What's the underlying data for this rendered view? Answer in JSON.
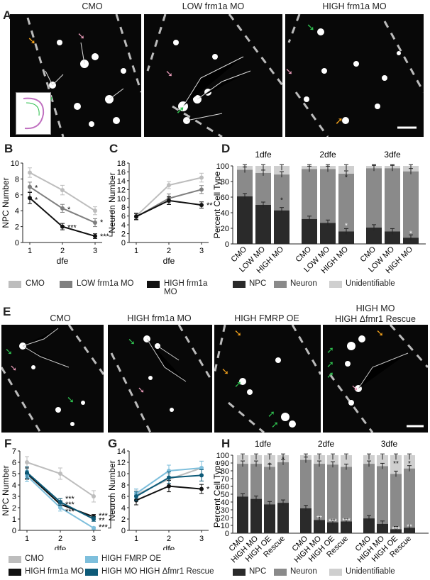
{
  "panels": {
    "A": {
      "label": "A",
      "titles": [
        "CMO",
        "LOW frm1a MO",
        "HIGH frm1a MO"
      ]
    },
    "B": {
      "label": "B"
    },
    "C": {
      "label": "C"
    },
    "D": {
      "label": "D"
    },
    "E": {
      "label": "E",
      "titles": [
        "CMO",
        "HIGH frm1a MO",
        "HIGH FMRP OE",
        "HIGH MO",
        "HIGH Δfmr1 Rescue"
      ]
    },
    "F": {
      "label": "F"
    },
    "G": {
      "label": "G"
    },
    "H": {
      "label": "H"
    }
  },
  "colors": {
    "cmo": "#bdbdbd",
    "low": "#7f7f7f",
    "high": "#111111",
    "fmrp": "#7ebfdc",
    "rescue": "#0d5a78",
    "npc": "#2a2a2a",
    "neuron": "#8a8a8a",
    "unid": "#cfcfcf",
    "arrow_green": "#2fbf4f",
    "arrow_pink": "#e89ab8",
    "arrow_orange": "#f3a21c"
  },
  "legends": {
    "top": [
      "CMO",
      "LOW frm1a MO",
      "HIGH frm1a MO"
    ],
    "bottom": [
      "CMO",
      "HIGH FMRP OE",
      "HIGH frm1a MO",
      "HIGH MO HIGH Δfmr1 Rescue"
    ],
    "celltype": [
      "NPC",
      "Neuron",
      "Unidentifiable"
    ]
  },
  "chart_data": [
    {
      "panel": "B",
      "type": "line",
      "xlabel": "dfe",
      "ylabel": "NPC Number",
      "x": [
        1,
        2,
        3
      ],
      "ylim": [
        0,
        10
      ],
      "yticks": [
        0,
        2,
        4,
        6,
        8,
        10
      ],
      "series": [
        {
          "name": "CMO",
          "values": [
            8.8,
            6.6,
            4.0
          ],
          "err": [
            0.6,
            0.6,
            0.5
          ]
        },
        {
          "name": "LOW frm1a MO",
          "values": [
            7.0,
            4.3,
            2.5
          ],
          "err": [
            0.6,
            0.5,
            0.5
          ]
        },
        {
          "name": "HIGH frm1a MO",
          "values": [
            5.6,
            2.0,
            0.8
          ],
          "err": [
            0.7,
            0.4,
            0.3
          ]
        }
      ],
      "stars": [
        {
          "x": 1,
          "y": 6.9,
          "t": "*"
        },
        {
          "x": 1,
          "y": 5.4,
          "t": "*"
        },
        {
          "x": 2,
          "y": 4.2,
          "t": "*"
        },
        {
          "x": 2,
          "y": 1.9,
          "t": "***"
        },
        {
          "x": 3,
          "y": 2.6,
          "t": "*"
        },
        {
          "x": 3,
          "y": 0.8,
          "t": "***"
        }
      ],
      "bracket": "*"
    },
    {
      "panel": "C",
      "type": "line",
      "xlabel": "dfe",
      "ylabel": "Neuron Number",
      "x": [
        1,
        2,
        3
      ],
      "ylim": [
        0,
        18
      ],
      "yticks": [
        0,
        2,
        4,
        6,
        8,
        10,
        12,
        14,
        16,
        18
      ],
      "series": [
        {
          "name": "CMO",
          "values": [
            6.0,
            13.0,
            14.7
          ],
          "err": [
            0.7,
            0.8,
            1.0
          ]
        },
        {
          "name": "LOW frm1a MO",
          "values": [
            5.8,
            10.0,
            12.0
          ],
          "err": [
            0.7,
            1.0,
            0.9
          ]
        },
        {
          "name": "HIGH frm1a MO",
          "values": [
            5.9,
            9.5,
            8.5
          ],
          "err": [
            0.7,
            0.9,
            0.7
          ]
        }
      ],
      "stars": [
        {
          "x": 3,
          "y": 8.5,
          "t": "**"
        }
      ]
    },
    {
      "panel": "D",
      "type": "bar",
      "ylabel": "Percent Cell Type",
      "groups": [
        "1dfe",
        "2dfe",
        "3dfe"
      ],
      "categories": [
        "CMO",
        "LOW MO",
        "HIGH MO"
      ],
      "ylim": [
        0,
        100
      ],
      "yticks": [
        0,
        20,
        40,
        60,
        80,
        100
      ],
      "npc": [
        [
          61,
          50,
          43
        ],
        [
          32,
          27,
          16
        ],
        [
          21,
          16,
          8
        ]
      ],
      "neuron": [
        [
          34,
          41,
          46
        ],
        [
          64,
          69,
          74
        ],
        [
          76,
          81,
          85
        ]
      ],
      "stars": [
        {
          "g": 1,
          "c": 2,
          "y": 86,
          "t": "*"
        },
        {
          "g": 1,
          "c": 2,
          "y": 24,
          "t": "*"
        },
        {
          "g": 0,
          "c": 2,
          "y": 57,
          "t": "*"
        },
        {
          "g": 2,
          "c": 2,
          "y": 14,
          "t": "*"
        }
      ]
    },
    {
      "panel": "F",
      "type": "line",
      "xlabel": "dfe",
      "ylabel": "NPC Number",
      "x": [
        1,
        2,
        3
      ],
      "ylim": [
        0,
        7
      ],
      "yticks": [
        0,
        1,
        2,
        3,
        4,
        5,
        6,
        7
      ],
      "series": [
        {
          "name": "CMO",
          "values": [
            6.0,
            5.0,
            3.0
          ],
          "err": [
            0.5,
            0.5,
            0.5
          ]
        },
        {
          "name": "HIGH frm1a MO",
          "values": [
            5.0,
            2.3,
            1.2
          ],
          "err": [
            0.5,
            0.3,
            0.2
          ]
        },
        {
          "name": "HIGH FMRP OE",
          "values": [
            4.8,
            2.0,
            0.2
          ],
          "err": [
            0.5,
            0.3,
            0.1
          ]
        },
        {
          "name": "HIGH MO HIGH Δfmr1 Rescue",
          "values": [
            5.1,
            2.5,
            1.0
          ],
          "err": [
            0.5,
            0.3,
            0.2
          ]
        }
      ],
      "stars": [
        {
          "x": 2,
          "y": 2.8,
          "t": "***"
        },
        {
          "x": 2,
          "y": 2.3,
          "t": "***"
        },
        {
          "x": 2,
          "y": 1.7,
          "t": "***"
        },
        {
          "x": 3,
          "y": 1.3,
          "t": "***"
        },
        {
          "x": 3,
          "y": 0.9,
          "t": "**"
        },
        {
          "x": 3,
          "y": 0.3,
          "t": "***"
        }
      ],
      "bracket": "*"
    },
    {
      "panel": "G",
      "type": "line",
      "xlabel": "dfe",
      "ylabel": "Neuron Number",
      "x": [
        1,
        2,
        3
      ],
      "ylim": [
        0,
        14
      ],
      "yticks": [
        0,
        2,
        4,
        6,
        8,
        10,
        12,
        14
      ],
      "series": [
        {
          "name": "CMO",
          "values": [
            6.3,
            9.0,
            11.0
          ],
          "err": [
            0.8,
            1.0,
            1.2
          ]
        },
        {
          "name": "HIGH frm1a MO",
          "values": [
            5.3,
            7.8,
            7.3
          ],
          "err": [
            0.8,
            1.0,
            0.8
          ]
        },
        {
          "name": "HIGH FMRP OE",
          "values": [
            6.5,
            10.5,
            11.0
          ],
          "err": [
            0.8,
            1.0,
            1.2
          ]
        },
        {
          "name": "HIGH MO HIGH Δfmr1 Rescue",
          "values": [
            6.0,
            9.3,
            9.7
          ],
          "err": [
            0.8,
            1.0,
            1.0
          ]
        }
      ],
      "stars": [
        {
          "x": 3,
          "y": 7.3,
          "t": "*"
        }
      ]
    },
    {
      "panel": "H",
      "type": "bar",
      "ylabel": "Percent Cell Type",
      "groups": [
        "1dfe",
        "2dfe",
        "3dfe"
      ],
      "categories": [
        "CMO",
        "HIGH MO",
        "HIGH OE",
        "Rescue"
      ],
      "ylim": [
        0,
        100
      ],
      "yticks": [
        0,
        10,
        20,
        30,
        40,
        50,
        60,
        70,
        80,
        90,
        100
      ],
      "npc": [
        [
          47,
          44,
          37,
          39
        ],
        [
          32,
          17,
          14,
          15
        ],
        [
          19,
          12,
          5,
          7
        ]
      ],
      "neuron": [
        [
          42,
          45,
          48,
          52
        ],
        [
          62,
          72,
          74,
          70
        ],
        [
          70,
          74,
          71,
          76
        ]
      ],
      "stars": [
        {
          "g": 0,
          "c": 2,
          "y": 88,
          "t": "*"
        },
        {
          "g": 0,
          "c": 3,
          "y": 96,
          "t": "*"
        },
        {
          "g": 1,
          "c": 1,
          "y": 20,
          "t": "**"
        },
        {
          "g": 1,
          "c": 2,
          "y": 16,
          "t": "***"
        },
        {
          "g": 1,
          "c": 3,
          "y": 17,
          "t": "***"
        },
        {
          "g": 2,
          "c": 2,
          "y": 90,
          "t": "**"
        },
        {
          "g": 2,
          "c": 3,
          "y": 90,
          "t": "*"
        },
        {
          "g": 2,
          "c": 2,
          "y": 6,
          "t": "***"
        },
        {
          "g": 2,
          "c": 3,
          "y": 9,
          "t": "**"
        }
      ]
    }
  ]
}
